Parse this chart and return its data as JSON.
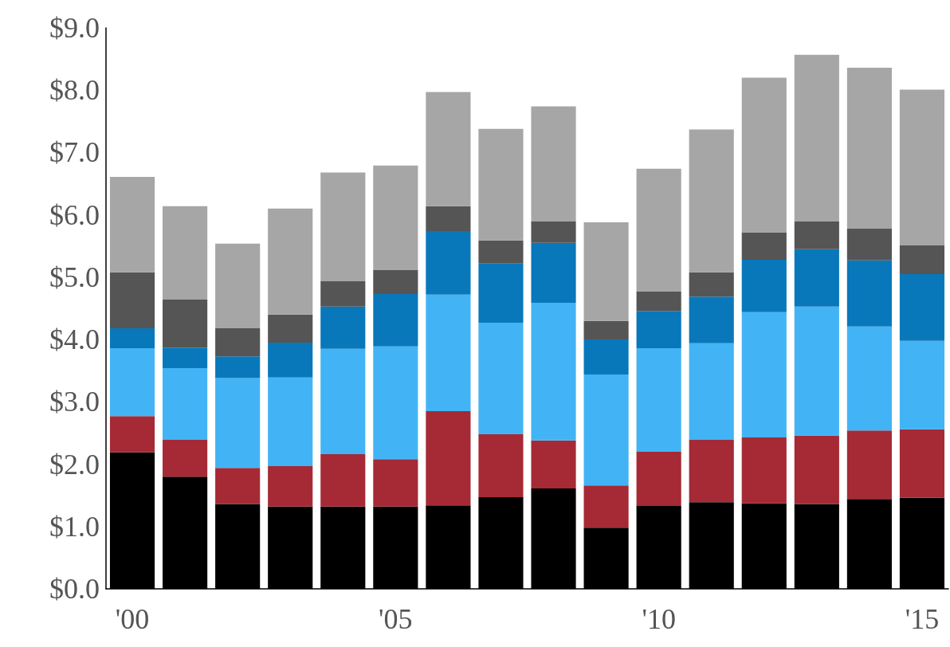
{
  "chart_data": {
    "type": "bar",
    "stacked": true,
    "categories": [
      "'00",
      null,
      null,
      null,
      null,
      "'05",
      null,
      null,
      null,
      null,
      "'10",
      null,
      null,
      null,
      null,
      "'15"
    ],
    "series": [
      {
        "color": "#000000",
        "values": [
          2.19,
          1.8,
          1.36,
          1.32,
          1.32,
          1.32,
          1.34,
          1.47,
          1.61,
          0.98,
          1.33,
          1.39,
          1.37,
          1.36,
          1.44,
          1.46
        ]
      },
      {
        "color": "#a52a35",
        "values": [
          0.58,
          0.59,
          0.58,
          0.65,
          0.84,
          0.76,
          1.51,
          1.01,
          0.77,
          0.68,
          0.87,
          1.0,
          1.06,
          1.1,
          1.1,
          1.1
        ]
      },
      {
        "color": "#42b4f5",
        "values": [
          1.09,
          1.15,
          1.44,
          1.42,
          1.69,
          1.81,
          1.87,
          1.79,
          2.21,
          1.78,
          1.66,
          1.55,
          2.01,
          2.07,
          1.67,
          1.42
        ]
      },
      {
        "color": "#0878bb",
        "values": [
          0.32,
          0.33,
          0.35,
          0.56,
          0.68,
          0.84,
          1.02,
          0.95,
          0.96,
          0.56,
          0.6,
          0.75,
          0.84,
          0.92,
          1.06,
          1.07
        ]
      },
      {
        "color": "#555555",
        "values": [
          0.9,
          0.77,
          0.45,
          0.45,
          0.41,
          0.39,
          0.4,
          0.37,
          0.35,
          0.3,
          0.31,
          0.39,
          0.44,
          0.45,
          0.51,
          0.46
        ]
      },
      {
        "color": "#a6a6a6",
        "values": [
          1.53,
          1.5,
          1.36,
          1.7,
          1.74,
          1.67,
          1.83,
          1.79,
          1.84,
          1.58,
          1.97,
          2.29,
          2.48,
          2.67,
          2.58,
          2.5
        ]
      }
    ],
    "ylim": [
      0,
      9
    ],
    "yticks": [
      {
        "value": 0,
        "label": "$0.0"
      },
      {
        "value": 1,
        "label": "$1.0"
      },
      {
        "value": 2,
        "label": "$2.0"
      },
      {
        "value": 3,
        "label": "$3.0"
      },
      {
        "value": 4,
        "label": "$4.0"
      },
      {
        "value": 5,
        "label": "$5.0"
      },
      {
        "value": 6,
        "label": "$6.0"
      },
      {
        "value": 7,
        "label": "$7.0"
      },
      {
        "value": 8,
        "label": "$8.0"
      },
      {
        "value": 9,
        "label": "$9.0"
      }
    ],
    "tick_labels": true
  }
}
